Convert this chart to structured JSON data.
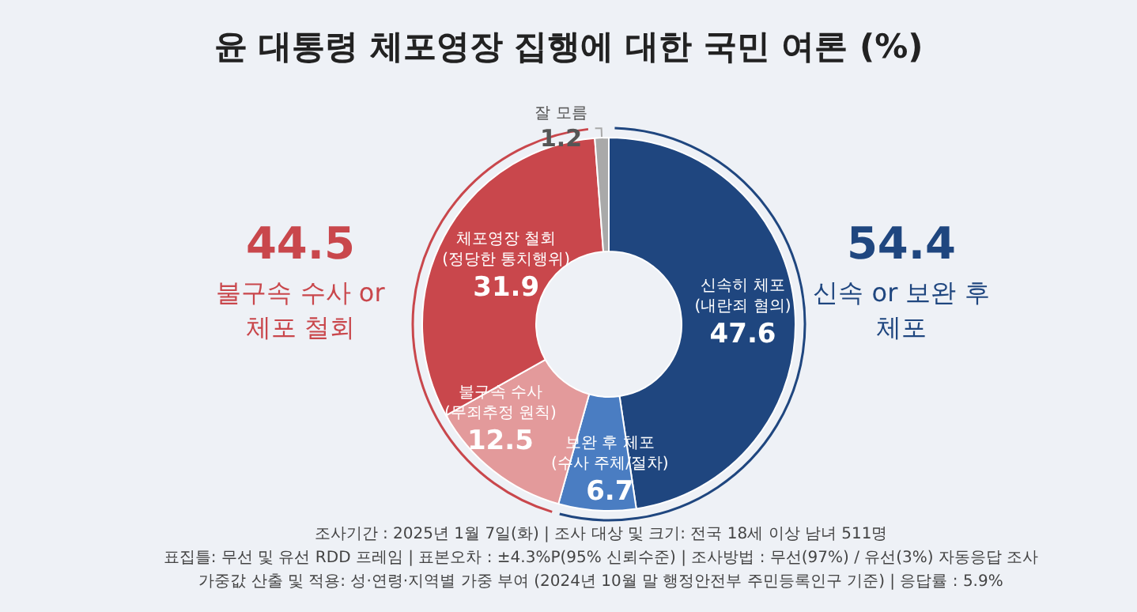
{
  "chart_data": {
    "type": "donut",
    "title": "윤 대통령 체포영장 집행에 대한 국민 여론 (%)",
    "categories": [
      "신속히 체포\n(내란죄 혐의)",
      "보완 후 체포\n(수사 주체/절차)",
      "불구속 수사\n(무죄추정 원칙)",
      "체포영장 철회\n(정당한 통치행위)",
      "잘 모름"
    ],
    "values": [
      47.6,
      6.7,
      12.5,
      31.9,
      1.2
    ],
    "colors": [
      "#1f467f",
      "#4a7dc2",
      "#e39a9b",
      "#c9474c",
      "#a9a9a9"
    ],
    "data_labels": true,
    "legend": false,
    "annotations": [
      "44.5",
      "불구속 수사 or\n체포 철회",
      "54.4",
      "신속 or 보완 후\n체포",
      "조사기간 : 2025년 1월 7일(화) | 조사 대상 및 크기: 전국 18세 이상 남녀 511명",
      "표집틀: 무선 및 유선 RDD 프레임 | 표본오차 : ±4.3%P(95% 신뢰수준) | 조사방법 : 무선(97%) / 유선(3%) 자동응답 조사",
      "가중값 산출 및 적용: 성·연령·지역별 가중 부여 (2024년 10월 말 행정안전부 주민등록인구 기준) | 응답률 : 5.9%"
    ]
  }
}
